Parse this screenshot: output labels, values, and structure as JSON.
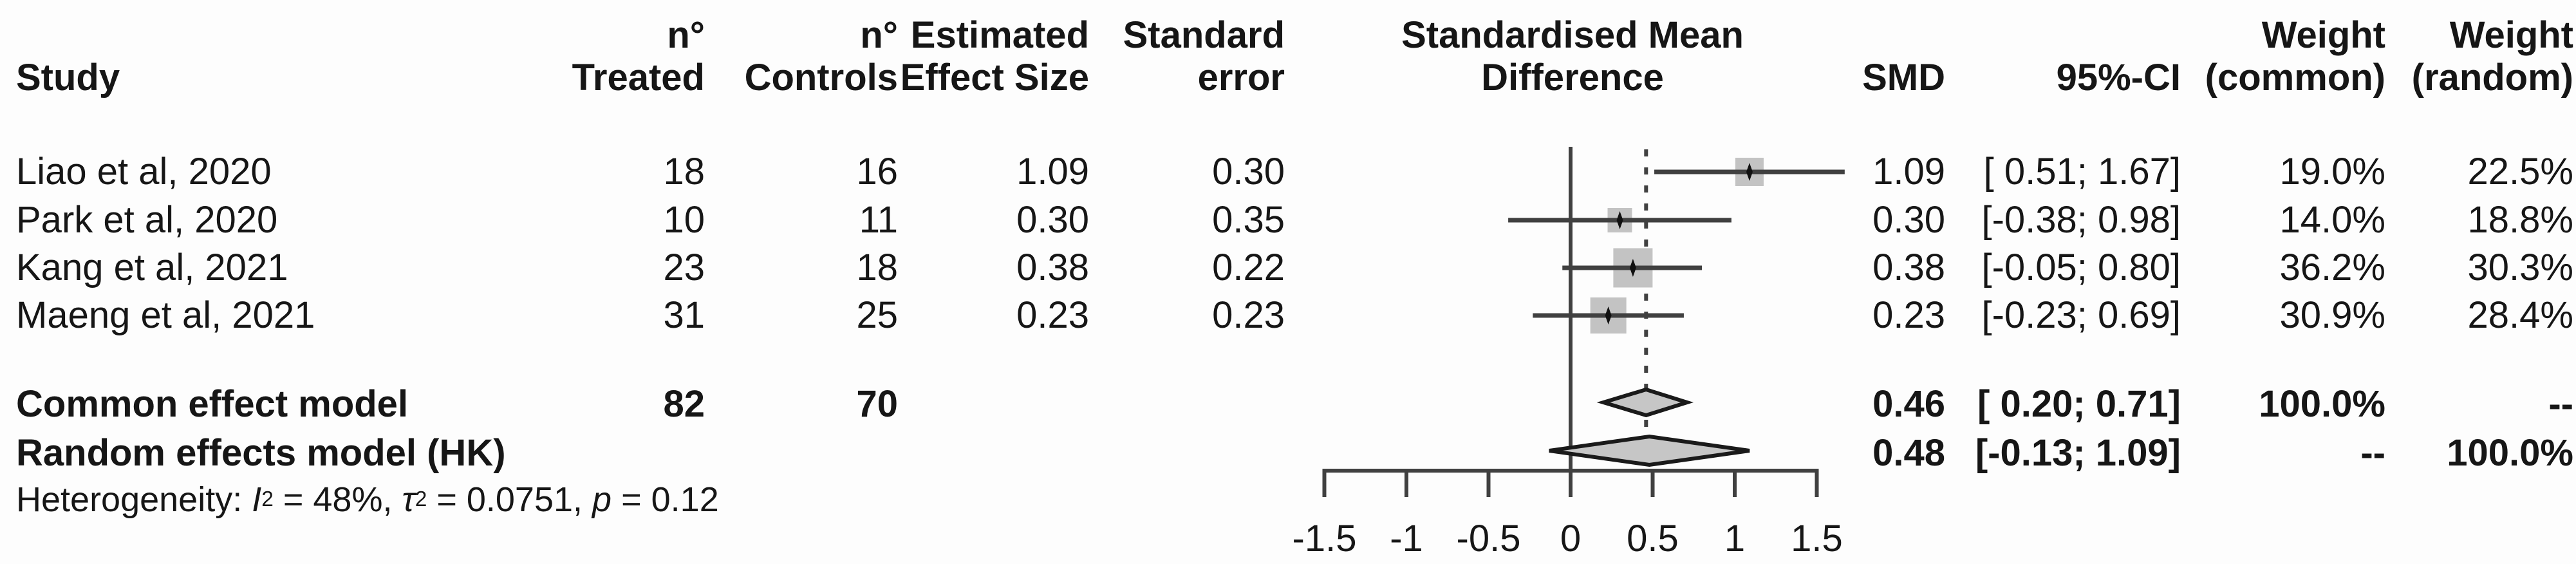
{
  "header": {
    "study": "Study",
    "treated_line1": "n°",
    "treated_line2": "Treated",
    "controls_line1": "n°",
    "controls_line2": "Controls",
    "effect_line1": "Estimated",
    "effect_line2": "Effect Size",
    "se_line1": "Standard",
    "se_line2": "error",
    "plot_line1": "Standardised Mean",
    "plot_line2": "Difference",
    "smd": "SMD",
    "ci": "95%-CI",
    "weight_common_line1": "Weight",
    "weight_common_line2": "(common)",
    "weight_random_line1": "Weight",
    "weight_random_line2": "(random)"
  },
  "studies": [
    {
      "label": "Liao et al, 2020",
      "n_treated": "18",
      "n_controls": "16",
      "effect": "1.09",
      "se": "0.30",
      "smd": "1.09",
      "ci": "[ 0.51; 1.67]",
      "w_common": "19.0%",
      "w_random": "22.5%"
    },
    {
      "label": "Park et al, 2020",
      "n_treated": "10",
      "n_controls": "11",
      "effect": "0.30",
      "se": "0.35",
      "smd": "0.30",
      "ci": "[-0.38; 0.98]",
      "w_common": "14.0%",
      "w_random": "18.8%"
    },
    {
      "label": "Kang et al, 2021",
      "n_treated": "23",
      "n_controls": "18",
      "effect": "0.38",
      "se": "0.22",
      "smd": "0.38",
      "ci": "[-0.05; 0.80]",
      "w_common": "36.2%",
      "w_random": "30.3%"
    },
    {
      "label": "Maeng et al, 2021",
      "n_treated": "31",
      "n_controls": "25",
      "effect": "0.23",
      "se": "0.23",
      "smd": "0.23",
      "ci": "[-0.23; 0.69]",
      "w_common": "30.9%",
      "w_random": "28.4%"
    }
  ],
  "summaries": [
    {
      "label": "Common effect model",
      "n_treated": "82",
      "n_controls": "70",
      "smd": "0.46",
      "ci": "[ 0.20; 0.71]",
      "w_common": "100.0%",
      "w_random": "--"
    },
    {
      "label": "Random effects model (HK)",
      "n_treated": "",
      "n_controls": "",
      "smd": "0.48",
      "ci": "[-0.13; 1.09]",
      "w_common": "--",
      "w_random": "100.0%"
    }
  ],
  "heterogeneity": {
    "prefix": "Heterogeneity: ",
    "i": "I",
    "i_sup": "2",
    "seg1": " = 48%, ",
    "tau": "τ",
    "tau_sup": "2",
    "seg2": " = 0.0751, ",
    "p": "p",
    "seg3": " = 0.12"
  },
  "chart_data": {
    "type": "forest",
    "title": "",
    "xlabel": "Standardised Mean Difference",
    "xlim": [
      -1.5,
      1.5
    ],
    "axis_ticks": [
      -1.5,
      -1,
      -0.5,
      0,
      0.5,
      1,
      1.5
    ],
    "tick_labels": [
      "-1.5",
      "-1",
      "-0.5",
      "0",
      "0.5",
      "1",
      "1.5"
    ],
    "zero_line": 0,
    "dashed_reference_line": 0.46,
    "studies": [
      {
        "name": "Liao et al, 2020",
        "smd": 1.09,
        "ci_low": 0.51,
        "ci_high": 1.67,
        "weight_common": 19.0,
        "weight_random": 22.5
      },
      {
        "name": "Park et al, 2020",
        "smd": 0.3,
        "ci_low": -0.38,
        "ci_high": 0.98,
        "weight_common": 14.0,
        "weight_random": 18.8
      },
      {
        "name": "Kang et al, 2021",
        "smd": 0.38,
        "ci_low": -0.05,
        "ci_high": 0.8,
        "weight_common": 36.2,
        "weight_random": 30.3
      },
      {
        "name": "Maeng et al, 2021",
        "smd": 0.23,
        "ci_low": -0.23,
        "ci_high": 0.69,
        "weight_common": 30.9,
        "weight_random": 28.4
      }
    ],
    "diamonds": [
      {
        "name": "Common effect model",
        "smd": 0.46,
        "ci_low": 0.2,
        "ci_high": 0.71
      },
      {
        "name": "Random effects model (HK)",
        "smd": 0.48,
        "ci_low": -0.13,
        "ci_high": 1.09
      }
    ],
    "heterogeneity": {
      "I2": "48%",
      "tau2": 0.0751,
      "p": 0.12
    }
  },
  "colors": {
    "text": "#161616",
    "line": "#404040",
    "square_fill": "#c3c3c3",
    "diamond_fill": "#c6c6c6",
    "diamond_stroke": "#1a1a1a",
    "background": "#fdfdfd"
  }
}
